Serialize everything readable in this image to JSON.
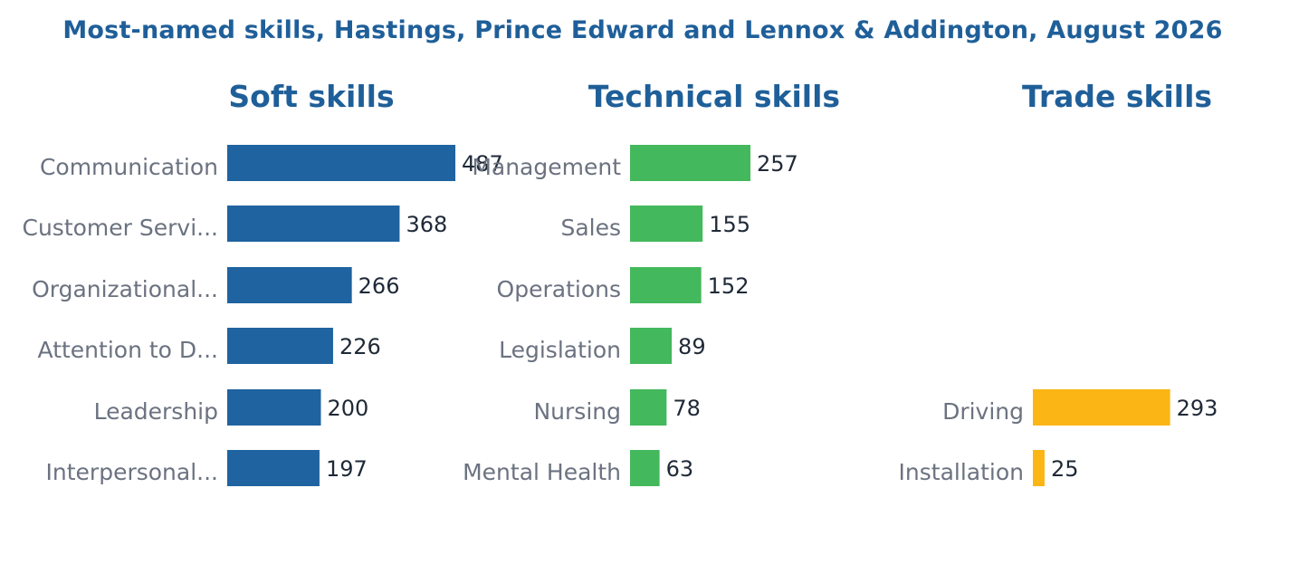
{
  "title": "Most-named skills, Hastings, Prince Edward and Lennox & Addington, August 2026",
  "chart_data": [
    {
      "type": "bar",
      "orientation": "horizontal",
      "title": "Soft skills",
      "color": "#1f63a0",
      "categories": [
        "Communication",
        "Customer Servi...",
        "Organizational...",
        "Attention to D...",
        "Leadership",
        "Interpersonal..."
      ],
      "values": [
        487,
        368,
        266,
        226,
        200,
        197
      ]
    },
    {
      "type": "bar",
      "orientation": "horizontal",
      "title": "Technical skills",
      "color": "#44b85c",
      "categories": [
        "Management",
        "Sales",
        "Operations",
        "Legislation",
        "Nursing",
        "Mental Health"
      ],
      "values": [
        257,
        155,
        152,
        89,
        78,
        63
      ]
    },
    {
      "type": "bar",
      "orientation": "horizontal",
      "title": "Trade skills",
      "color": "#fbb514",
      "categories": [
        "Driving",
        "Installation"
      ],
      "values": [
        293,
        25
      ]
    }
  ],
  "colors": {
    "title": "#1f5f99"
  }
}
